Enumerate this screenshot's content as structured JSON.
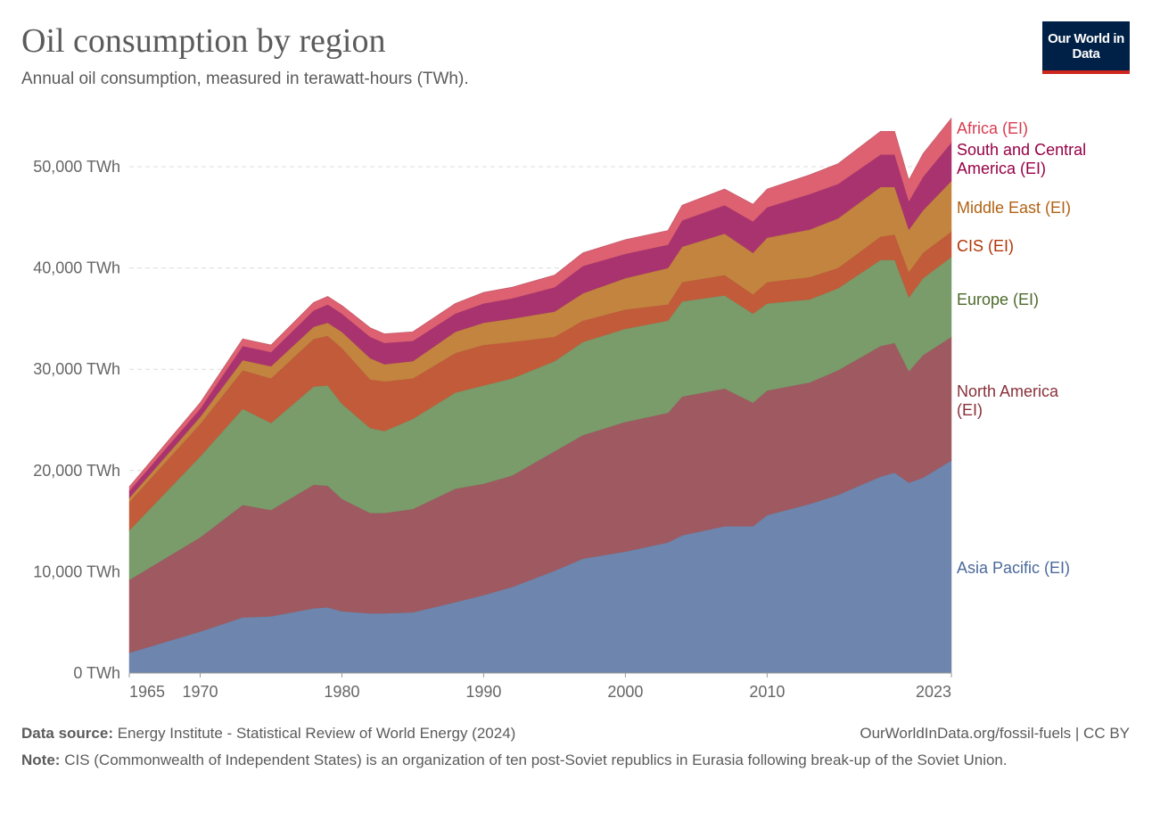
{
  "header": {
    "title": "Oil consumption by region",
    "subtitle": "Annual oil consumption, measured in terawatt-hours (TWh).",
    "logo_text": "Our World in Data"
  },
  "footer": {
    "source_label": "Data source:",
    "source_text": "Energy Institute - Statistical Review of World Energy (2024)",
    "link_text": "OurWorldInData.org/fossil-fuels | CC BY",
    "note_label": "Note:",
    "note_text": "CIS (Commonwealth of Independent States) is an organization of ten post-Soviet republics in Eurasia following break-up of the Soviet Union."
  },
  "chart_data": {
    "type": "area",
    "stacked": true,
    "title": "Oil consumption by region",
    "ylabel": "TWh",
    "ylim": [
      0,
      55000
    ],
    "xlim": [
      1965,
      2023
    ],
    "grid": true,
    "legend_placement": "right (inline labels)",
    "y_ticks": [
      {
        "value": 0,
        "label": "0 TWh"
      },
      {
        "value": 10000,
        "label": "10,000 TWh"
      },
      {
        "value": 20000,
        "label": "20,000 TWh"
      },
      {
        "value": 30000,
        "label": "30,000 TWh"
      },
      {
        "value": 40000,
        "label": "40,000 TWh"
      },
      {
        "value": 50000,
        "label": "50,000 TWh"
      }
    ],
    "x_ticks": [
      {
        "value": 1965,
        "label": "1965"
      },
      {
        "value": 1970,
        "label": "1970"
      },
      {
        "value": 1980,
        "label": "1980"
      },
      {
        "value": 1990,
        "label": "1990"
      },
      {
        "value": 2000,
        "label": "2000"
      },
      {
        "value": 2010,
        "label": "2010"
      },
      {
        "value": 2023,
        "label": "2023"
      }
    ],
    "x": [
      1965,
      1970,
      1973,
      1975,
      1978,
      1979,
      1980,
      1982,
      1983,
      1985,
      1988,
      1990,
      1992,
      1995,
      1997,
      2000,
      2003,
      2004,
      2007,
      2009,
      2010,
      2013,
      2015,
      2018,
      2019,
      2020,
      2021,
      2023
    ],
    "series": [
      {
        "name": "Asia Pacific (EI)",
        "color": "#6e86ae",
        "label_color": "#4c6a9c",
        "values": [
          2000,
          4100,
          5500,
          5600,
          6400,
          6500,
          6100,
          5900,
          5900,
          6000,
          7000,
          7700,
          8500,
          10100,
          11300,
          12000,
          12900,
          13600,
          14500,
          14500,
          15600,
          16700,
          17600,
          19400,
          19800,
          18800,
          19300,
          21000
        ]
      },
      {
        "name": "North America (EI)",
        "color": "#9e5a60",
        "label_color": "#883039",
        "values": [
          7200,
          9300,
          11100,
          10500,
          12200,
          12000,
          11100,
          9900,
          9900,
          10200,
          11200,
          11000,
          11000,
          11800,
          12200,
          12800,
          12800,
          13700,
          13600,
          12200,
          12300,
          12000,
          12300,
          12900,
          12800,
          11000,
          12100,
          12200
        ]
      },
      {
        "name": "Europe (EI)",
        "color": "#7a9b6a",
        "label_color": "#4c6a2c",
        "values": [
          4900,
          8000,
          9500,
          8600,
          9700,
          9900,
          9400,
          8400,
          8100,
          8900,
          9500,
          9700,
          9600,
          8900,
          9200,
          9200,
          9100,
          9400,
          9200,
          8800,
          8600,
          8200,
          8100,
          8500,
          8200,
          7300,
          7600,
          7900
        ]
      },
      {
        "name": "CIS (EI)",
        "color": "#c25b3a",
        "label_color": "#b13507",
        "values": [
          2800,
          3200,
          3800,
          4400,
          4700,
          4900,
          5500,
          4800,
          4900,
          4000,
          3900,
          4000,
          3600,
          2400,
          2100,
          1900,
          1600,
          1900,
          2000,
          1900,
          2100,
          2200,
          2000,
          2300,
          2500,
          2500,
          2500,
          2500
        ]
      },
      {
        "name": "Middle East (EI)",
        "color": "#c2843f",
        "label_color": "#b16214",
        "values": [
          400,
          700,
          1000,
          1200,
          1200,
          1300,
          1600,
          2100,
          1700,
          1700,
          2100,
          2200,
          2300,
          2500,
          2700,
          3100,
          3600,
          3500,
          4100,
          4100,
          4400,
          4700,
          4900,
          4900,
          4700,
          4200,
          4200,
          5000
        ]
      },
      {
        "name": "South and Central America (EI)",
        "color": "#a9336f",
        "label_color": "#970046",
        "values": [
          700,
          800,
          1400,
          1400,
          1600,
          1800,
          1800,
          2100,
          2100,
          2000,
          1800,
          1900,
          2000,
          2400,
          2700,
          2400,
          2300,
          2600,
          2800,
          3100,
          3000,
          3500,
          3400,
          3200,
          3200,
          2800,
          3300,
          3800
        ]
      },
      {
        "name": "Africa (EI)",
        "color": "#dd6170",
        "label_color": "#d73c50",
        "values": [
          400,
          600,
          700,
          700,
          800,
          800,
          800,
          900,
          900,
          900,
          1000,
          1100,
          1100,
          1200,
          1300,
          1400,
          1400,
          1500,
          1600,
          1700,
          1800,
          1900,
          2000,
          2300,
          2300,
          2100,
          2300,
          2400
        ]
      }
    ]
  }
}
